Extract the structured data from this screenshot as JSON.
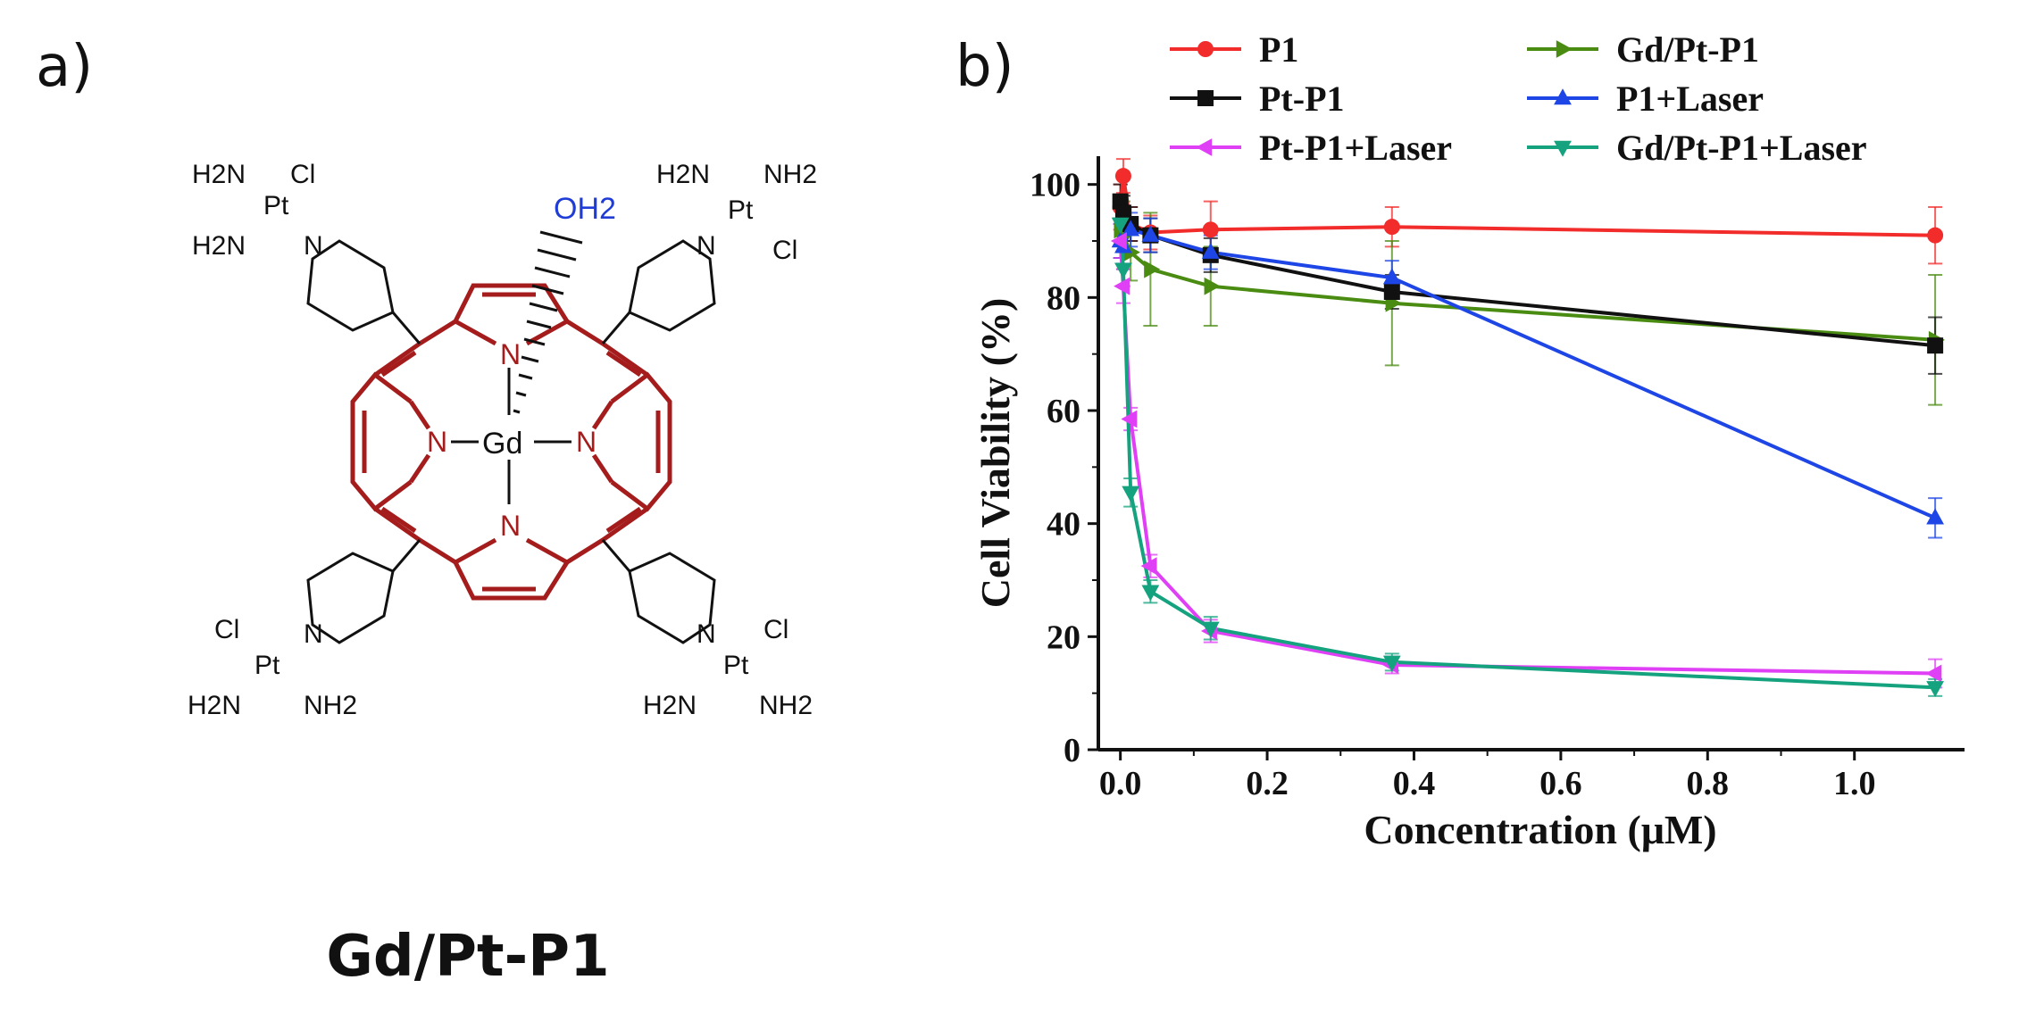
{
  "panel_a": {
    "label": "a)",
    "compound_name": "Gd/Pt-P1",
    "structure_labels": {
      "metal_center": "Gd",
      "axial_ligand": "OH2",
      "pyrrole_nitrogen": "N",
      "pyridine_nitrogen": "N",
      "platinum": "Pt",
      "amine": "H2N",
      "amine_right": "NH2",
      "chloride": "Cl"
    },
    "colors": {
      "porphyrin": "#a51c1c",
      "axial_ligand": "#1f3dd6",
      "bonds": "#111111"
    }
  },
  "panel_b": {
    "label": "b)"
  },
  "chart_data": {
    "type": "line",
    "xlabel": "Concentration (μM)",
    "ylabel": "Cell Viability (%)",
    "xlim": [
      -0.03,
      1.15
    ],
    "ylim": [
      0,
      105
    ],
    "xticks": [
      0.0,
      0.2,
      0.4,
      0.6,
      0.8,
      1.0
    ],
    "xtick_labels": [
      "0.0",
      "0.2",
      "0.4",
      "0.6",
      "0.8",
      "1.0"
    ],
    "yticks": [
      0,
      20,
      40,
      60,
      80,
      100
    ],
    "ytick_labels": [
      "0",
      "20",
      "40",
      "60",
      "80",
      "100"
    ],
    "legend_placement": "top",
    "grid": false,
    "series": [
      {
        "name": "P1",
        "color": "#f22b2b",
        "marker": "circle",
        "x": [
          0.0,
          0.004,
          0.014,
          0.041,
          0.123,
          0.37,
          1.11
        ],
        "y": [
          96,
          101.5,
          93,
          91.5,
          92,
          92.5,
          91
        ],
        "err": [
          4,
          3,
          3,
          3,
          5,
          3.5,
          5
        ]
      },
      {
        "name": "Gd/Pt-P1",
        "color": "#4a8c12",
        "marker": "triangle-right",
        "x": [
          0.0,
          0.004,
          0.014,
          0.041,
          0.123,
          0.37,
          1.11
        ],
        "y": [
          92,
          91,
          88,
          85,
          82,
          79,
          72.5
        ],
        "err": [
          5,
          6,
          5,
          10,
          7,
          11,
          11.5
        ]
      },
      {
        "name": "Pt-P1",
        "color": "#111111",
        "marker": "square",
        "x": [
          0.0,
          0.004,
          0.014,
          0.041,
          0.123,
          0.37,
          1.11
        ],
        "y": [
          97,
          95,
          93,
          91,
          87.5,
          81,
          71.5
        ],
        "err": [
          3,
          3,
          3,
          3,
          3,
          3,
          5
        ]
      },
      {
        "name": "P1+Laser",
        "color": "#1e46e6",
        "marker": "triangle-up",
        "x": [
          0.0,
          0.004,
          0.014,
          0.041,
          0.123,
          0.37,
          1.11
        ],
        "y": [
          90,
          89,
          92,
          91,
          88,
          83.5,
          41
        ],
        "err": [
          3,
          3,
          3,
          3,
          3,
          3,
          3.5
        ]
      },
      {
        "name": "Pt-P1+Laser",
        "color": "#e040f5",
        "marker": "triangle-left",
        "x": [
          0.0,
          0.004,
          0.014,
          0.041,
          0.123,
          0.37,
          1.11
        ],
        "y": [
          90,
          82,
          58.5,
          32.5,
          21,
          15,
          13.5
        ],
        "err": [
          3,
          3,
          2,
          2,
          2,
          1.5,
          2.5
        ]
      },
      {
        "name": "Gd/Pt-P1+Laser",
        "color": "#15a37f",
        "marker": "triangle-down",
        "x": [
          0.0,
          0.004,
          0.014,
          0.041,
          0.123,
          0.37,
          1.11
        ],
        "y": [
          93,
          85,
          45.5,
          28,
          21.5,
          15.5,
          11
        ],
        "err": [
          3,
          3,
          2.5,
          2,
          2,
          1.5,
          1.5
        ]
      }
    ]
  }
}
